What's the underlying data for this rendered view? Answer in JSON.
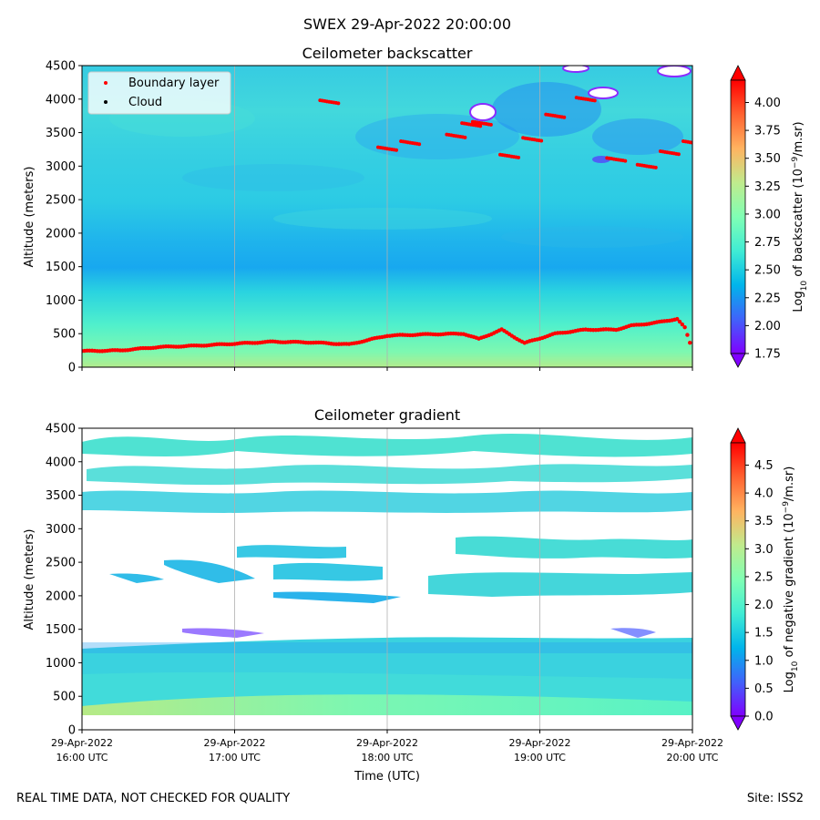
{
  "suptitle": "SWEX 29-Apr-2022 20:00:00",
  "footer": {
    "left": "REAL TIME DATA, NOT CHECKED FOR QUALITY",
    "right": "Site: ISS2"
  },
  "chart_data": [
    {
      "type": "heatmap",
      "title": "Ceilometer backscatter",
      "xlabel": "",
      "ylabel": "Altitude (meters)",
      "x_range_utc": [
        "16:00",
        "20:00"
      ],
      "ylim": [
        0,
        4500
      ],
      "yticks": [
        "0",
        "500",
        "1000",
        "1500",
        "2000",
        "2500",
        "3000",
        "3500",
        "4000",
        "4500"
      ],
      "xticks": [
        {
          "date": "",
          "time": ""
        },
        {
          "date": "",
          "time": ""
        },
        {
          "date": "",
          "time": ""
        },
        {
          "date": "",
          "time": ""
        },
        {
          "date": "",
          "time": ""
        }
      ],
      "grid": "vertical",
      "colorbar": {
        "label_prefix": "Log",
        "label_sub": "10",
        "label_mid": " of backscatter (10",
        "label_sup": "−9",
        "label_suffix": "/m.sr)",
        "range": [
          1.75,
          4.2
        ],
        "ticks": [
          "1.75",
          "2.00",
          "2.25",
          "2.50",
          "2.75",
          "3.00",
          "3.25",
          "3.50",
          "3.75",
          "4.00"
        ],
        "extend": "both"
      },
      "legend": {
        "placement": "top-left",
        "entries": [
          {
            "label": "Boundary layer",
            "color": "#ff0000"
          },
          {
            "label": "Cloud",
            "color": "#000000"
          }
        ]
      },
      "series": [
        {
          "name": "Boundary layer",
          "x_hours": [
            0.0,
            0.25,
            0.5,
            0.75,
            1.0,
            1.25,
            1.5,
            1.75,
            2.0,
            2.25,
            2.5,
            2.6,
            2.75,
            2.9,
            3.0,
            3.1,
            3.3,
            3.5,
            3.6,
            3.75,
            3.9,
            3.95,
            4.0
          ],
          "altitude_m": [
            240,
            250,
            300,
            320,
            350,
            380,
            370,
            340,
            470,
            490,
            500,
            420,
            560,
            360,
            430,
            500,
            560,
            560,
            620,
            660,
            720,
            590,
            250
          ]
        },
        {
          "name": "Boundary layer (aloft segments)",
          "x_hours": [
            1.62,
            2.0,
            2.15,
            2.45,
            2.55,
            2.62,
            2.8,
            2.95,
            3.1,
            3.3,
            3.5,
            3.7,
            3.85,
            4.0
          ],
          "altitude_m": [
            3960,
            3260,
            3350,
            3450,
            3620,
            3640,
            3150,
            3400,
            3750,
            4000,
            3100,
            3000,
            3200,
            3350
          ]
        }
      ],
      "field_description_values": {
        "near_ground": 2.9,
        "boundary_layer": 2.65,
        "mid_troposphere": 2.45,
        "upper_levels": 2.55
      }
    },
    {
      "type": "heatmap",
      "title": "Ceilometer gradient",
      "xlabel": "Time (UTC)",
      "ylabel": "Altitude (meters)",
      "x_range_utc": [
        "16:00",
        "20:00"
      ],
      "ylim": [
        0,
        4500
      ],
      "yticks": [
        "0",
        "500",
        "1000",
        "1500",
        "2000",
        "2500",
        "3000",
        "3500",
        "4000",
        "4500"
      ],
      "xticks": [
        {
          "date": "29-Apr-2022",
          "time": "16:00 UTC"
        },
        {
          "date": "29-Apr-2022",
          "time": "17:00 UTC"
        },
        {
          "date": "29-Apr-2022",
          "time": "18:00 UTC"
        },
        {
          "date": "29-Apr-2022",
          "time": "19:00 UTC"
        },
        {
          "date": "29-Apr-2022",
          "time": "20:00 UTC"
        }
      ],
      "grid": "vertical",
      "colorbar": {
        "label_prefix": "Log",
        "label_sub": "10",
        "label_mid": " of negative gradient (10",
        "label_sup": "−9",
        "label_suffix": "/m.sr)",
        "range": [
          0.0,
          4.9
        ],
        "ticks": [
          "0.0",
          "0.5",
          "1.0",
          "1.5",
          "2.0",
          "2.5",
          "3.0",
          "3.5",
          "4.0",
          "4.5"
        ],
        "extend": "both"
      },
      "field_description_values": {
        "surface_layer": 2.8,
        "boundary_layer_top_m": 1250,
        "boundary_layer": 2.0,
        "cloud_layers": 2.1
      }
    }
  ]
}
